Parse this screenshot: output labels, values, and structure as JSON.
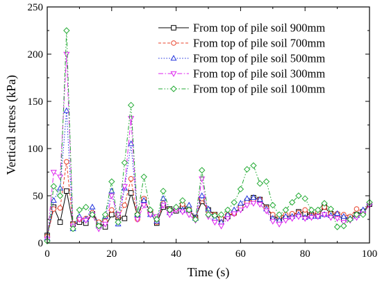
{
  "chart_data": {
    "type": "line",
    "xlabel": "Time (s)",
    "ylabel": "Vertical stress (kPa)",
    "xlim": [
      0,
      100
    ],
    "ylim": [
      0,
      250
    ],
    "xticks": [
      0,
      20,
      40,
      60,
      80,
      100
    ],
    "yticks": [
      0,
      50,
      100,
      150,
      200,
      250
    ],
    "grid": false,
    "legend_position": "top-right",
    "x": [
      0,
      2,
      4,
      6,
      8,
      10,
      12,
      14,
      16,
      18,
      20,
      22,
      24,
      26,
      28,
      30,
      32,
      34,
      36,
      38,
      40,
      42,
      44,
      46,
      48,
      50,
      52,
      54,
      56,
      58,
      60,
      62,
      64,
      66,
      68,
      70,
      72,
      74,
      76,
      78,
      80,
      82,
      84,
      86,
      88,
      90,
      92,
      94,
      96,
      98,
      100
    ],
    "series": [
      {
        "name": "From top of pile soil 900mm",
        "color": "#000000",
        "dash": "",
        "marker": "square",
        "values": [
          8,
          38,
          22,
          55,
          20,
          22,
          21,
          31,
          21,
          17,
          30,
          27,
          26,
          53,
          29,
          46,
          33,
          21,
          38,
          36,
          34,
          39,
          34,
          27,
          44,
          35,
          30,
          25,
          28,
          32,
          37,
          44,
          48,
          46,
          38,
          28,
          26,
          27,
          29,
          33,
          31,
          30,
          29,
          38,
          31,
          30,
          25,
          27,
          30,
          33,
          41
        ]
      },
      {
        "name": "From top of pile soil 700mm",
        "color": "#e8412a",
        "dash": "4,2.5",
        "marker": "circle",
        "values": [
          7,
          36,
          37,
          86,
          20,
          25,
          26,
          32,
          22,
          23,
          35,
          28,
          40,
          68,
          25,
          47,
          32,
          22,
          42,
          35,
          36,
          41,
          36,
          26,
          47,
          34,
          30,
          26,
          30,
          31,
          38,
          43,
          46,
          46,
          37,
          30,
          28,
          30,
          31,
          32,
          35,
          29,
          33,
          38,
          31,
          31,
          30,
          28,
          36,
          33,
          42
        ]
      },
      {
        "name": "From top of pile soil 500mm",
        "color": "#2233dd",
        "dash": "1.6,2.2",
        "marker": "triangle-up",
        "values": [
          5,
          45,
          58,
          140,
          15,
          28,
          25,
          38,
          18,
          28,
          55,
          20,
          58,
          105,
          30,
          45,
          30,
          23,
          47,
          32,
          38,
          35,
          40,
          26,
          50,
          36,
          26,
          22,
          30,
          35,
          42,
          47,
          48,
          46,
          36,
          26,
          24,
          28,
          28,
          30,
          27,
          28,
          28,
          30,
          29,
          31,
          28,
          26,
          29,
          35,
          43
        ]
      },
      {
        "name": "From top of pile soil 300mm",
        "color": "#dd22ee",
        "dash": "7,2.5,1.6,2.5",
        "marker": "triangle-down",
        "values": [
          4,
          75,
          70,
          200,
          18,
          25,
          24,
          30,
          15,
          20,
          50,
          30,
          60,
          132,
          25,
          40,
          30,
          28,
          40,
          30,
          35,
          33,
          30,
          24,
          68,
          28,
          22,
          18,
          26,
          31,
          35,
          40,
          42,
          41,
          34,
          23,
          20,
          24,
          26,
          28,
          26,
          27,
          28,
          30,
          27,
          26,
          22,
          24,
          27,
          31,
          40
        ]
      },
      {
        "name": "From top of pile soil 100mm",
        "color": "#22aa33",
        "dash": "6,2.5,1.6,2.5,1.6,2.5",
        "marker": "diamond",
        "values": [
          2,
          60,
          50,
          225,
          15,
          35,
          38,
          30,
          18,
          30,
          65,
          22,
          85,
          146,
          30,
          70,
          35,
          25,
          55,
          35,
          38,
          45,
          35,
          25,
          77,
          30,
          29,
          30,
          35,
          43,
          57,
          78,
          82,
          63,
          65,
          40,
          30,
          35,
          43,
          50,
          47,
          35,
          35,
          42,
          36,
          17,
          18,
          25,
          30,
          30,
          43
        ]
      }
    ]
  }
}
